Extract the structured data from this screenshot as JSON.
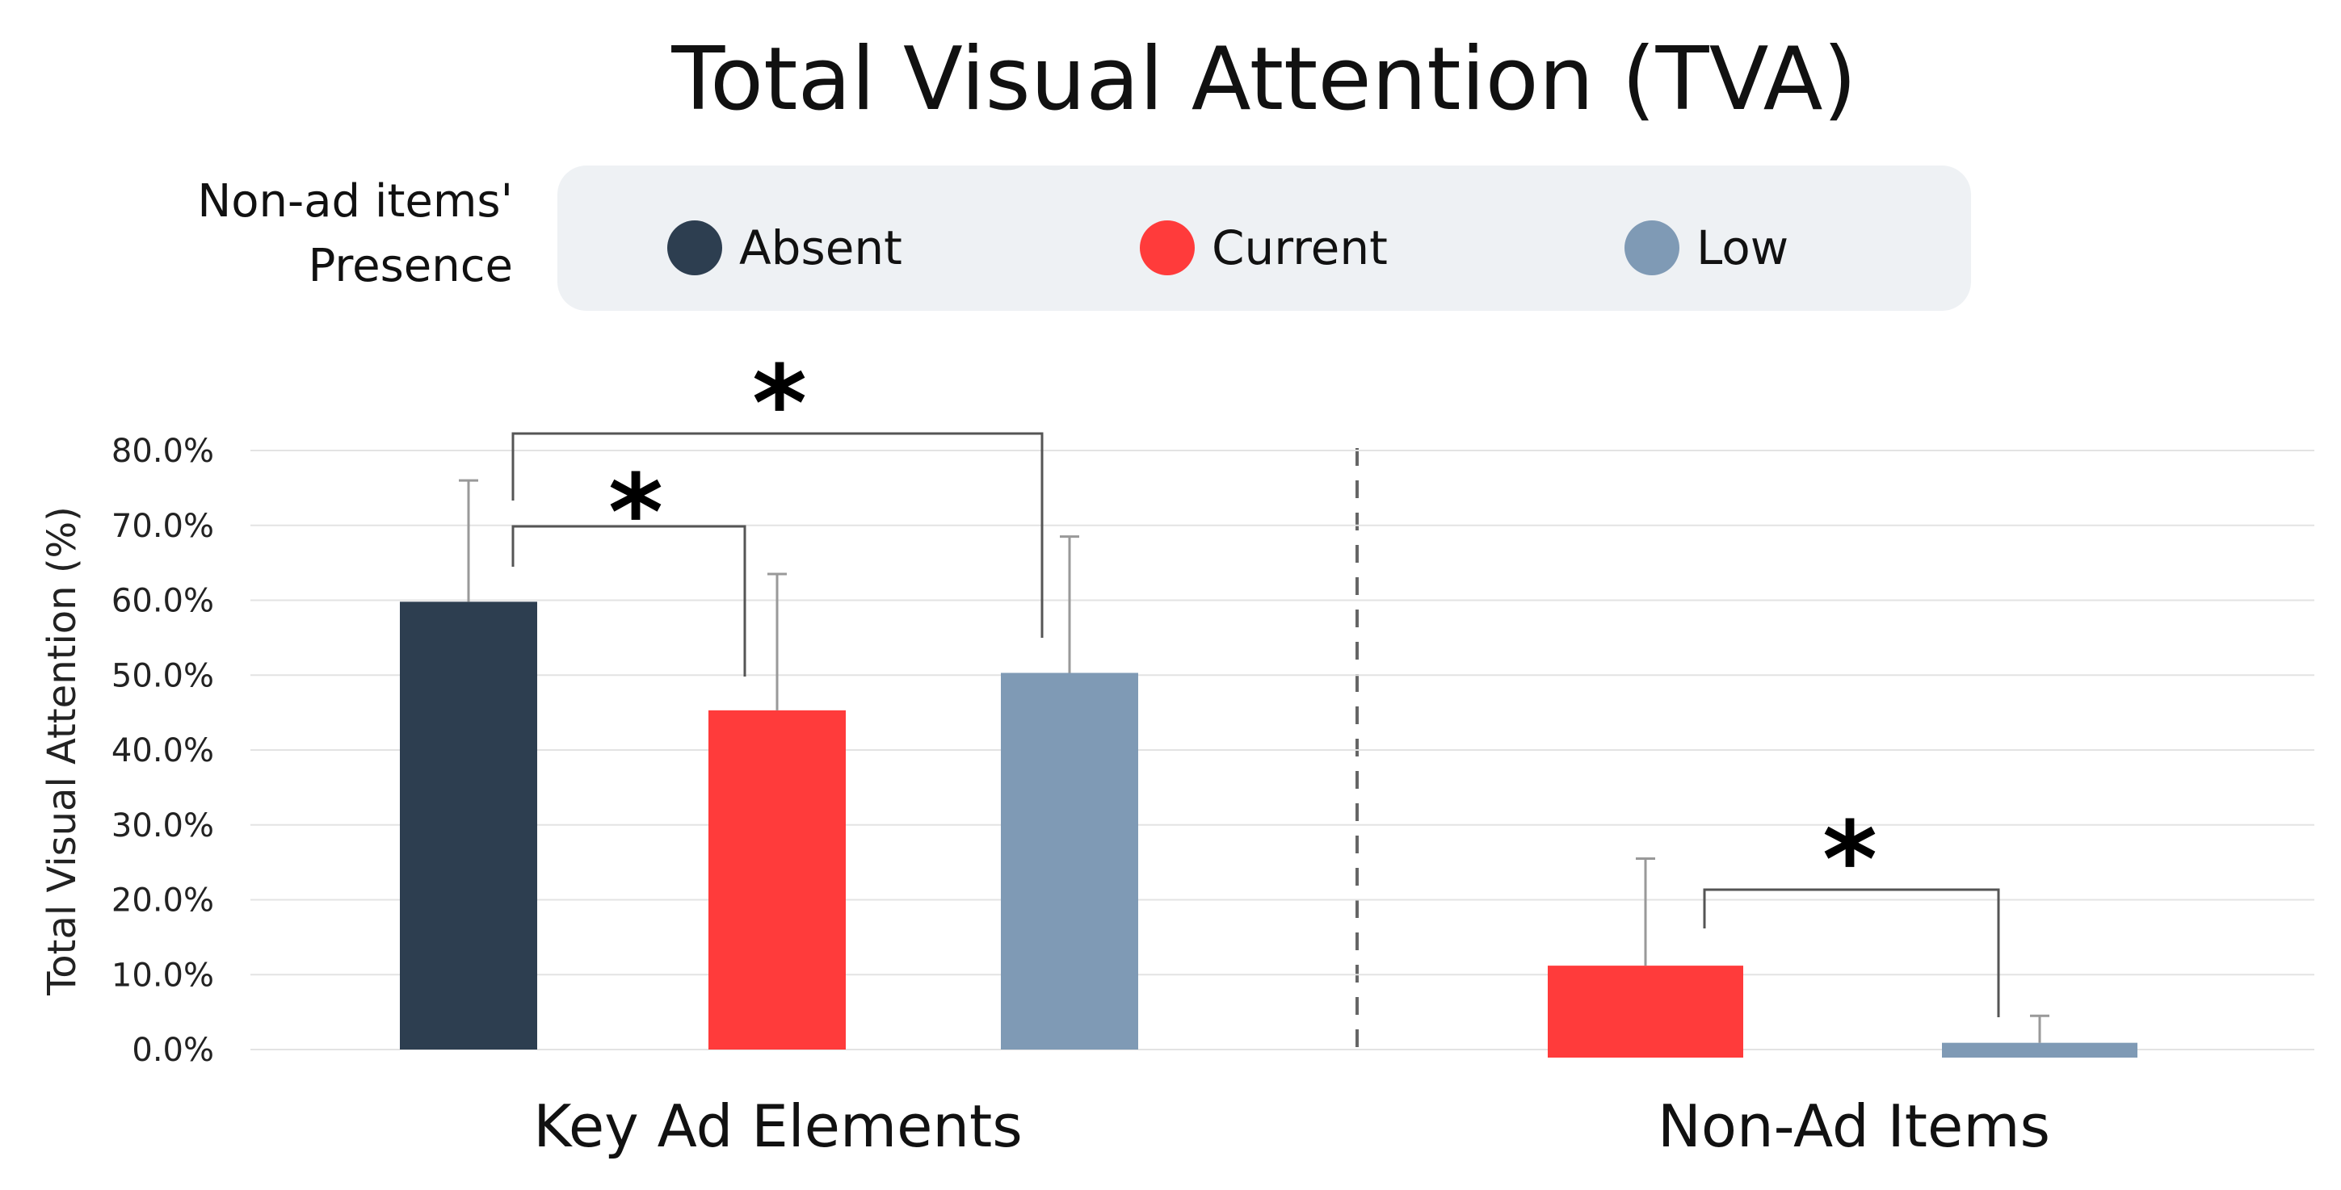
{
  "chart_data": {
    "type": "bar",
    "title": "Total Visual Attention (TVA)",
    "ylabel": "Total Visual Attention (%)",
    "xlabel": "",
    "ylim": [
      0,
      80
    ],
    "y_ticks": [
      "0.0%",
      "10.0%",
      "20.0%",
      "30.0%",
      "40.0%",
      "50.0%",
      "60.0%",
      "70.0%",
      "80.0%"
    ],
    "legend": {
      "title_line1": "Non-ad items'",
      "title_line2": "Presence",
      "entries": [
        {
          "name": "Absent",
          "color": "#2d3e50"
        },
        {
          "name": "Current",
          "color": "#ff3b3b"
        },
        {
          "name": "Low",
          "color": "#7f9ab5"
        }
      ]
    },
    "groups": [
      {
        "label": "Key Ad Elements",
        "bars": [
          {
            "series": "Absent",
            "value": 59.8,
            "error_top": 76.0
          },
          {
            "series": "Current",
            "value": 45.3,
            "error_top": 63.5
          },
          {
            "series": "Low",
            "value": 50.3,
            "error_top": 68.5
          }
        ]
      },
      {
        "label": "Non-Ad Items",
        "bars": [
          {
            "series": "Current",
            "value": 11.2,
            "error_top": 25.5
          },
          {
            "series": "Low",
            "value": 0.9,
            "error_top": 4.5
          }
        ]
      }
    ],
    "significance": [
      {
        "mark": "*",
        "group": 0,
        "from": 0,
        "to": 1
      },
      {
        "mark": "*",
        "group": 0,
        "from": 0,
        "to": 2
      },
      {
        "mark": "*",
        "group": 1,
        "from": 0,
        "to": 1
      }
    ]
  }
}
